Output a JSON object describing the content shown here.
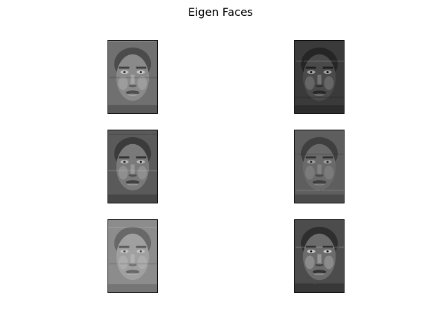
{
  "figure": {
    "title": "Eigen Faces"
  },
  "faces": [
    {
      "tone": "#707070",
      "face": "#8a8a8a",
      "dark": "#2e2e2e",
      "light": "#d8d8d8"
    },
    {
      "tone": "#3a3a3a",
      "face": "#4a4a4a",
      "dark": "#141414",
      "light": "#bdbdbd"
    },
    {
      "tone": "#5a5a5a",
      "face": "#7a7a7a",
      "dark": "#222222",
      "light": "#cfcfcf"
    },
    {
      "tone": "#5e5e5e",
      "face": "#6a6a6a",
      "dark": "#262626",
      "light": "#b0b0b0"
    },
    {
      "tone": "#8c8c8c",
      "face": "#a0a0a0",
      "dark": "#4a4a4a",
      "light": "#d0d0d0"
    },
    {
      "tone": "#4c4c4c",
      "face": "#6c6c6c",
      "dark": "#151515",
      "light": "#e6e6e6"
    }
  ]
}
